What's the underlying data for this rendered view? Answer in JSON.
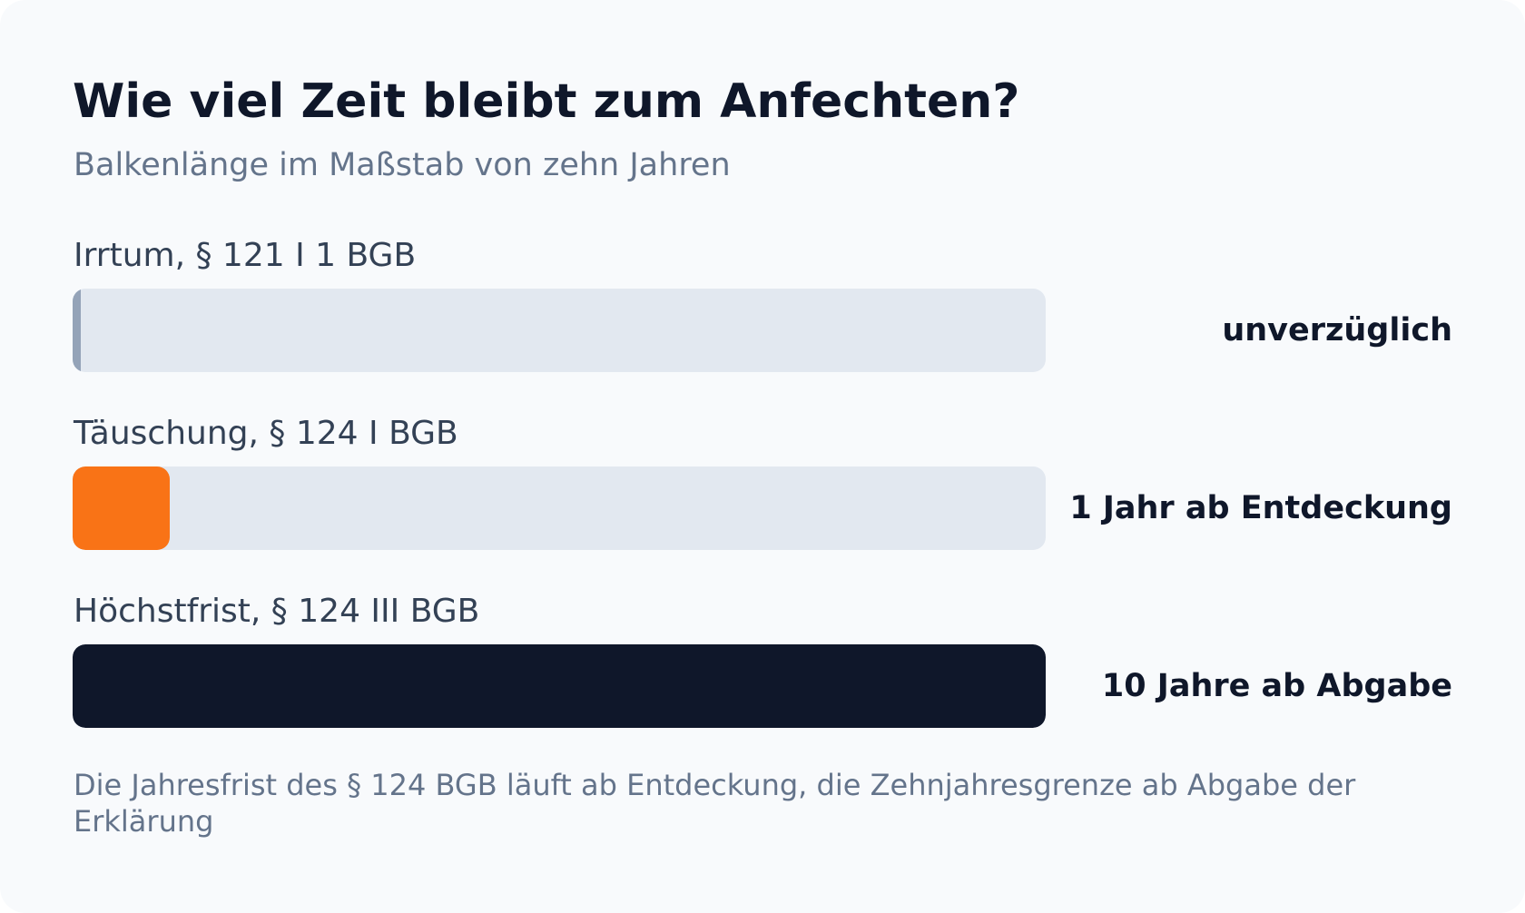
{
  "card": {
    "title": "Wie viel Zeit bleibt zum Anfechten?",
    "subtitle": "Balkenlänge im Maßstab von zehn Jahren",
    "footnote": "Die Jahresfrist des § 124 BGB läuft ab Entdeckung, die Zehnjahresgrenze ab Abgabe der Erklärung"
  },
  "chart_data": {
    "type": "bar",
    "orientation": "horizontal",
    "title": "Wie viel Zeit bleibt zum Anfechten?",
    "subtitle": "Balkenlänge im Maßstab von zehn Jahren",
    "unit": "Jahre",
    "xlim": [
      0,
      10
    ],
    "grid": false,
    "legend": "none",
    "track_color": "#e2e8f0",
    "rows": [
      {
        "category": "Irrtum, § 121 I 1 BGB",
        "value": 0,
        "value_label": "unverzüglich",
        "color": "#94a3b8"
      },
      {
        "category": "Täuschung, § 124 I BGB",
        "value": 1,
        "value_label": "1 Jahr ab Entdeckung",
        "color": "#f97316"
      },
      {
        "category": "Höchstfrist, § 124 III BGB",
        "value": 10,
        "value_label": "10 Jahre ab Abgabe",
        "color": "#0f172a"
      }
    ]
  }
}
